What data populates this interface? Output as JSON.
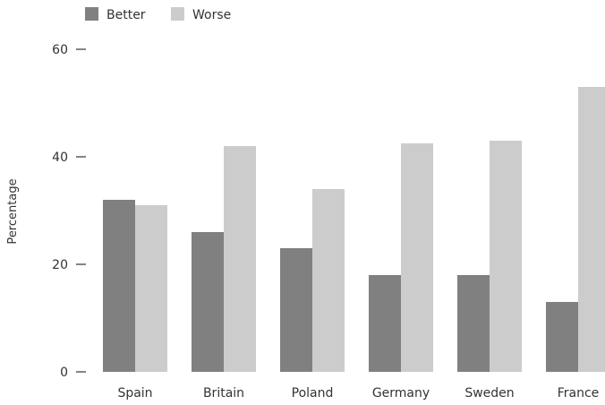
{
  "chart_data": {
    "type": "bar",
    "title": "",
    "xlabel": "",
    "ylabel": "Percentage",
    "ylim": [
      0,
      60
    ],
    "yticks": [
      0,
      20,
      40,
      60
    ],
    "grid": false,
    "legend_position": "top-left",
    "categories": [
      "Spain",
      "Britain",
      "Poland",
      "Germany",
      "Sweden",
      "France"
    ],
    "series": [
      {
        "name": "Better",
        "color": "#808080",
        "values": [
          32,
          26,
          23,
          18,
          18,
          13
        ]
      },
      {
        "name": "Worse",
        "color": "#cccccc",
        "values": [
          31,
          42,
          34,
          42.5,
          43,
          53
        ]
      }
    ]
  }
}
